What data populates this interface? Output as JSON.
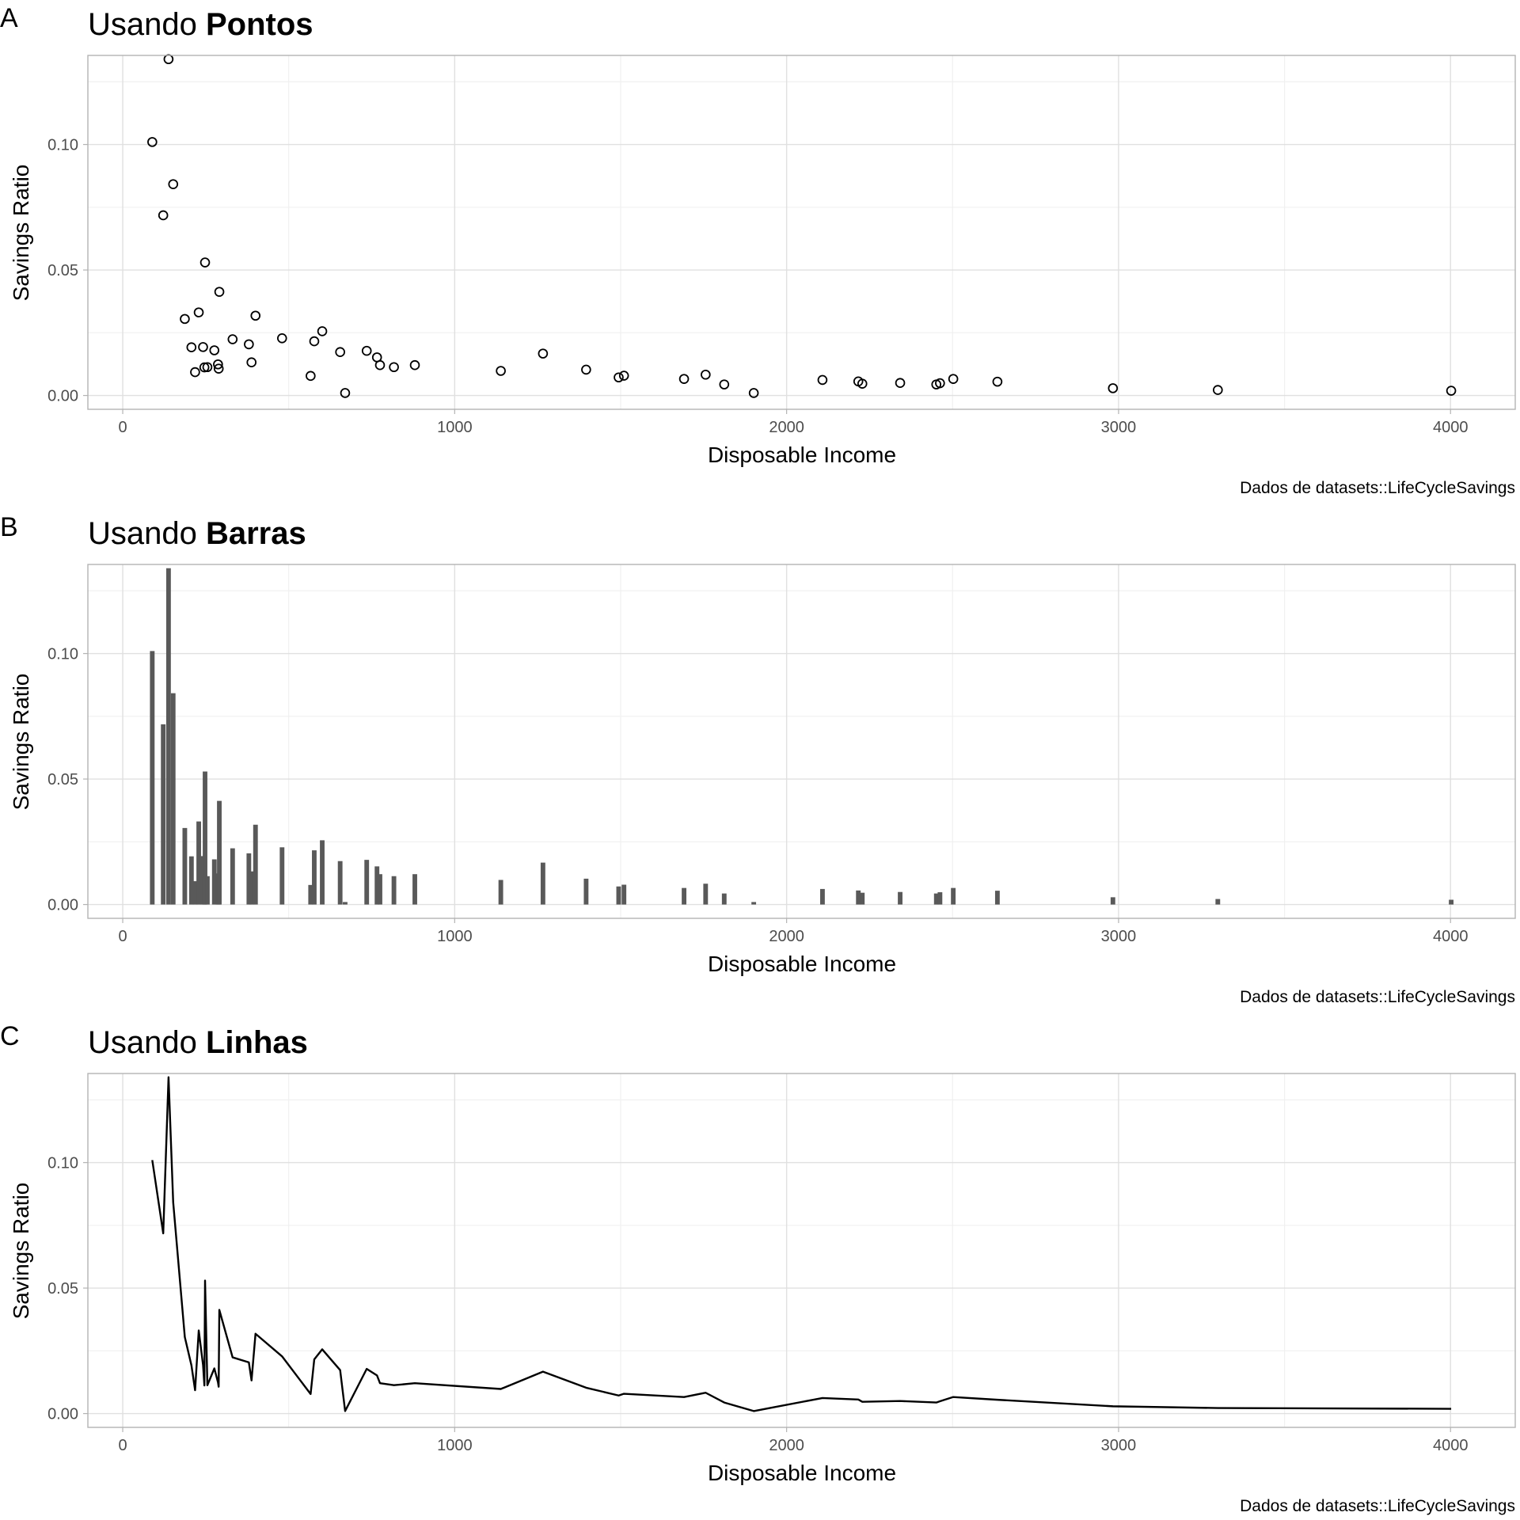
{
  "chart_data": [
    {
      "type": "scatter",
      "tag": "A",
      "title_prefix": "Usando ",
      "title_bold": "Pontos",
      "xlabel": "Disposable Income",
      "ylabel": "Savings Ratio",
      "caption": "Dados de datasets::LifeCycleSavings",
      "xlim": [
        -105,
        4195
      ],
      "ylim": [
        -0.0055,
        0.1355
      ],
      "x_ticks": [
        0,
        1000,
        2000,
        3000,
        4000
      ],
      "x_tick_labels": [
        "0",
        "1000",
        "2000",
        "3000",
        "4000"
      ],
      "y_ticks": [
        0.0,
        0.05,
        0.1
      ],
      "y_tick_labels": [
        "0.00",
        "0.05",
        "0.10"
      ],
      "grid": true,
      "x": [
        89,
        122,
        138,
        152,
        187,
        207,
        218,
        229,
        242,
        246,
        248,
        255,
        276,
        287,
        289,
        291,
        331,
        380,
        388,
        400,
        480,
        566,
        577,
        601,
        655,
        670,
        735,
        766,
        775,
        817,
        880,
        1139,
        1266,
        1396,
        1494,
        1510,
        1691,
        1756,
        1812,
        1901,
        2108,
        2216,
        2228,
        2342,
        2451,
        2462,
        2502,
        2635,
        2983,
        3299,
        4002
      ],
      "y": [
        0.101,
        0.0718,
        0.134,
        0.0842,
        0.0305,
        0.0192,
        0.0093,
        0.0331,
        0.0193,
        0.0112,
        0.053,
        0.0113,
        0.018,
        0.0124,
        0.0107,
        0.0413,
        0.0224,
        0.0204,
        0.0132,
        0.0318,
        0.0228,
        0.0078,
        0.0216,
        0.0256,
        0.0173,
        0.001,
        0.0178,
        0.0152,
        0.0121,
        0.0113,
        0.0121,
        0.0098,
        0.0167,
        0.0103,
        0.0072,
        0.0079,
        0.0066,
        0.0083,
        0.0044,
        0.001,
        0.0062,
        0.0056,
        0.0047,
        0.005,
        0.0044,
        0.0049,
        0.0066,
        0.0055,
        0.0029,
        0.0022,
        0.0019
      ]
    },
    {
      "type": "bar",
      "tag": "B",
      "title_prefix": "Usando ",
      "title_bold": "Barras",
      "xlabel": "Disposable Income",
      "ylabel": "Savings Ratio",
      "caption": "Dados de datasets::LifeCycleSavings",
      "xlim": [
        -105,
        4195
      ],
      "ylim": [
        -0.0055,
        0.1355
      ],
      "x_ticks": [
        0,
        1000,
        2000,
        3000,
        4000
      ],
      "x_tick_labels": [
        "0",
        "1000",
        "2000",
        "3000",
        "4000"
      ],
      "y_ticks": [
        0.0,
        0.05,
        0.1
      ],
      "y_tick_labels": [
        "0.00",
        "0.05",
        "0.10"
      ],
      "grid": true,
      "bar_width": 14,
      "x": [
        89,
        122,
        138,
        152,
        187,
        207,
        218,
        229,
        242,
        246,
        248,
        255,
        276,
        287,
        289,
        291,
        331,
        380,
        388,
        400,
        480,
        566,
        577,
        601,
        655,
        670,
        735,
        766,
        775,
        817,
        880,
        1139,
        1266,
        1396,
        1494,
        1510,
        1691,
        1756,
        1812,
        1901,
        2108,
        2216,
        2228,
        2342,
        2451,
        2462,
        2502,
        2635,
        2983,
        3299,
        4002
      ],
      "y": [
        0.101,
        0.0718,
        0.134,
        0.0842,
        0.0305,
        0.0192,
        0.0093,
        0.0331,
        0.0193,
        0.0112,
        0.053,
        0.0113,
        0.018,
        0.0124,
        0.0107,
        0.0413,
        0.0224,
        0.0204,
        0.0132,
        0.0318,
        0.0228,
        0.0078,
        0.0216,
        0.0256,
        0.0173,
        0.001,
        0.0178,
        0.0152,
        0.0121,
        0.0113,
        0.0121,
        0.0098,
        0.0167,
        0.0103,
        0.0072,
        0.0079,
        0.0066,
        0.0083,
        0.0044,
        0.001,
        0.0062,
        0.0056,
        0.0047,
        0.005,
        0.0044,
        0.0049,
        0.0066,
        0.0055,
        0.0029,
        0.0022,
        0.0019
      ]
    },
    {
      "type": "line",
      "tag": "C",
      "title_prefix": "Usando ",
      "title_bold": "Linhas",
      "xlabel": "Disposable Income",
      "ylabel": "Savings Ratio",
      "caption": "Dados de datasets::LifeCycleSavings",
      "xlim": [
        -105,
        4195
      ],
      "ylim": [
        -0.0055,
        0.1355
      ],
      "x_ticks": [
        0,
        1000,
        2000,
        3000,
        4000
      ],
      "x_tick_labels": [
        "0",
        "1000",
        "2000",
        "3000",
        "4000"
      ],
      "y_ticks": [
        0.0,
        0.05,
        0.1
      ],
      "y_tick_labels": [
        "0.00",
        "0.05",
        "0.10"
      ],
      "grid": true,
      "x": [
        89,
        122,
        138,
        152,
        187,
        207,
        218,
        229,
        242,
        246,
        248,
        255,
        276,
        287,
        289,
        291,
        331,
        380,
        388,
        400,
        480,
        566,
        577,
        601,
        655,
        670,
        735,
        766,
        775,
        817,
        880,
        1139,
        1266,
        1396,
        1494,
        1510,
        1691,
        1756,
        1812,
        1901,
        2108,
        2216,
        2228,
        2342,
        2451,
        2462,
        2502,
        2635,
        2983,
        3299,
        4002
      ],
      "y": [
        0.101,
        0.0718,
        0.134,
        0.0842,
        0.0305,
        0.0192,
        0.0093,
        0.0331,
        0.0193,
        0.0112,
        0.053,
        0.0113,
        0.018,
        0.0124,
        0.0107,
        0.0413,
        0.0224,
        0.0204,
        0.0132,
        0.0318,
        0.0228,
        0.0078,
        0.0216,
        0.0256,
        0.0173,
        0.001,
        0.0178,
        0.0152,
        0.0121,
        0.0113,
        0.0121,
        0.0098,
        0.0167,
        0.0103,
        0.0072,
        0.0079,
        0.0066,
        0.0083,
        0.0044,
        0.001,
        0.0062,
        0.0056,
        0.0047,
        0.005,
        0.0044,
        0.0049,
        0.0066,
        0.0055,
        0.0029,
        0.0022,
        0.0019
      ]
    }
  ]
}
